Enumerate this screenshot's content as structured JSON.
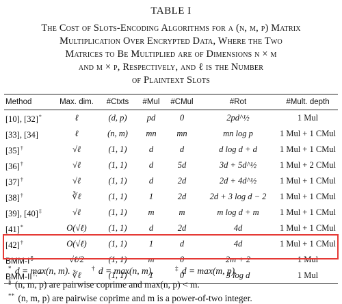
{
  "label": "TABLE I",
  "caption_lines": [
    "The Cost of Slots-Encoding Algorithms for a (n, m, p) Matrix",
    "Multiplication Over Encrypted Data, Where the Two",
    "Matrices to Be Multiplied are of Dimensions n × m",
    "and m × p, Respectively, and ℓ is the Number",
    "of Plaintext Slots"
  ],
  "headers": [
    "Method",
    "Max. dim.",
    "#Ctxts",
    "#Mul",
    "#CMul",
    "#Rot",
    "#Mult. depth"
  ],
  "rows": [
    {
      "method": "[10], [32]",
      "mark": "*",
      "dim": "ℓ",
      "ctxts": "(d, p)",
      "mul": "pd",
      "cmul": "0",
      "rot": "2pd^½",
      "depth": "1 Mul"
    },
    {
      "method": "[33], [34]",
      "mark": "",
      "dim": "ℓ",
      "ctxts": "(n, m)",
      "mul": "mn",
      "cmul": "mn",
      "rot": "mn log p",
      "depth": "1 Mul + 1 CMul"
    },
    {
      "method": "[35]",
      "mark": "†",
      "dim": "√ℓ",
      "ctxts": "(1, 1)",
      "mul": "d",
      "cmul": "d",
      "rot": "d log d + d",
      "depth": "1 Mul + 1 CMul"
    },
    {
      "method": "[36]",
      "mark": "†",
      "dim": "√ℓ",
      "ctxts": "(1, 1)",
      "mul": "d",
      "cmul": "5d",
      "rot": "3d + 5d^½",
      "depth": "1 Mul + 2 CMul"
    },
    {
      "method": "[37]",
      "mark": "†",
      "dim": "√ℓ",
      "ctxts": "(1, 1)",
      "mul": "d",
      "cmul": "2d",
      "rot": "2d + 4d^½",
      "depth": "1 Mul + 1 CMul"
    },
    {
      "method": "[38]",
      "mark": "†",
      "dim": "∛ℓ",
      "ctxts": "(1, 1)",
      "mul": "1",
      "cmul": "2d",
      "rot": "2d + 3 log d − 2",
      "depth": "1 Mul + 1 CMul"
    },
    {
      "method": "[39], [40]",
      "mark": "‡",
      "dim": "√ℓ",
      "ctxts": "(1, 1)",
      "mul": "m",
      "cmul": "m",
      "rot": "m log d + m",
      "depth": "1 Mul + 1 CMul"
    },
    {
      "method": "[41]",
      "mark": "*",
      "dim": "O(√ℓ)",
      "ctxts": "(1, 1)",
      "mul": "d",
      "cmul": "2d",
      "rot": "4d",
      "depth": "1 Mul + 1 CMul"
    },
    {
      "method": "[42]",
      "mark": "†",
      "dim": "O(√ℓ)",
      "ctxts": "(1, 1)",
      "mul": "1",
      "cmul": "d",
      "rot": "4d",
      "depth": "1 Mul + 1 CMul"
    },
    {
      "method": "BMM-I",
      "mark": "§",
      "dim": "√ℓ/2",
      "ctxts": "(1, 1)",
      "mul": "m",
      "cmul": "0",
      "rot": "2m + 2",
      "depth": "1 Mul"
    },
    {
      "method": "BMM-II",
      "mark": "†, **",
      "dim": "∛ℓ",
      "ctxts": "(1, 1)",
      "mul": "1",
      "cmul": "0",
      "rot": "3 log d",
      "depth": "1 Mul"
    }
  ],
  "notes": {
    "line1": [
      {
        "mark": "*",
        "text": " d = max(n, m)."
      },
      {
        "mark": "†",
        "text": " d = max(n, m)."
      },
      {
        "mark": "‡",
        "text": " d = max(m, p)."
      }
    ],
    "line2": {
      "mark": "§",
      "text": " (n, m, p) are pairwise coprime and max(n, p) < m."
    },
    "line3": {
      "mark": "**",
      "text": " (n, m, p) are pairwise coprime and m is a power-of-two integer."
    }
  }
}
